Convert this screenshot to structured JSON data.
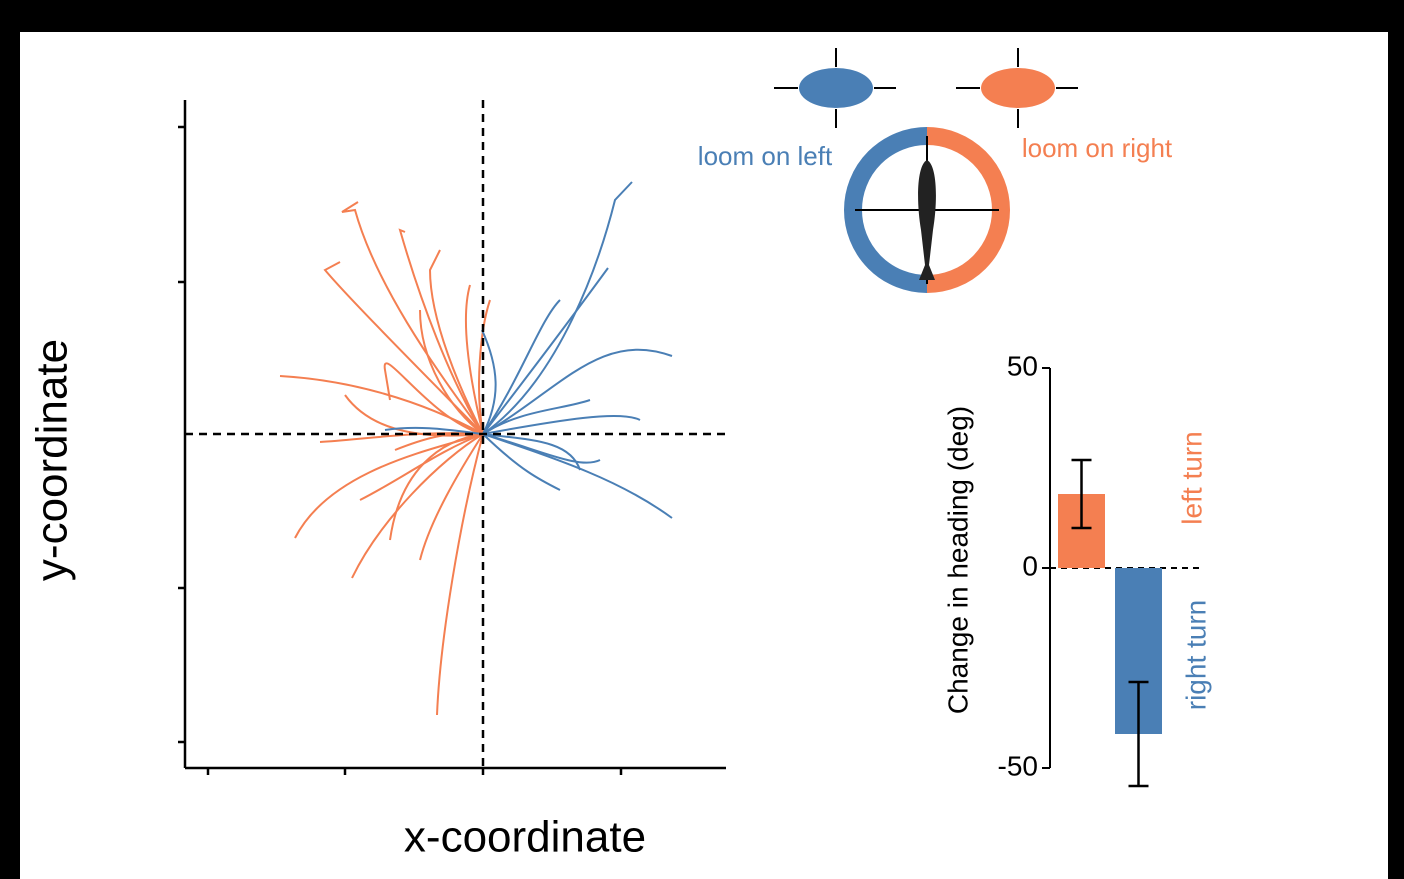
{
  "chart_data": [
    {
      "type": "trajectories",
      "xlabel": "x-coordinate",
      "ylabel": "y-coordinate"
    },
    {
      "type": "bar",
      "ylabel": "Change in heading (deg)",
      "categories": [
        "left turn",
        "right turn"
      ],
      "values": [
        18.5,
        -41.5
      ],
      "errors": [
        8.5,
        13
      ],
      "colors": [
        "#f47f51",
        "#4a7fb5"
      ],
      "ylim": [
        -50,
        50
      ],
      "yticks": [
        50,
        0,
        -50
      ]
    }
  ],
  "diagram": {
    "left_label": "loom on left",
    "right_label": "loom on right"
  }
}
